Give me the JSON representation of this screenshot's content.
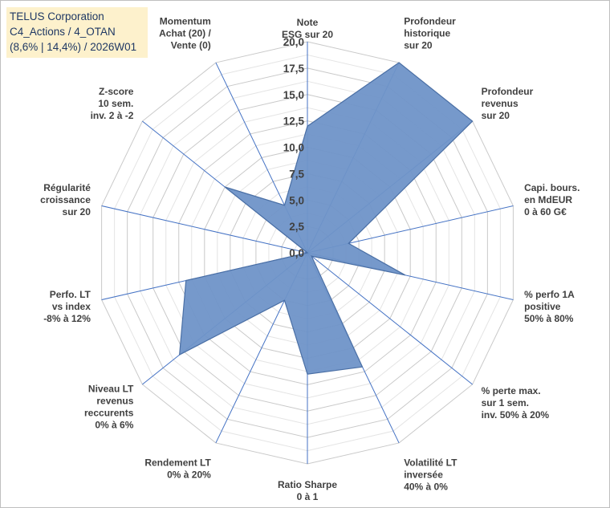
{
  "header": {
    "line1": "TELUS Corporation",
    "line2": "C4_Actions / 4_OTAN",
    "line3": "(8,6% | 14,4%) / 2026W01"
  },
  "chart_data": {
    "type": "radar",
    "rlim": [
      0,
      20
    ],
    "tick_values": [
      0,
      2.5,
      5,
      7.5,
      10,
      12.5,
      15,
      17.5,
      20
    ],
    "tick_labels": [
      "0,0",
      "2,5",
      "5,0",
      "7,5",
      "10,0",
      "12,5",
      "15,0",
      "17,5",
      "20,0"
    ],
    "axes": [
      {
        "label": [
          "Note",
          "ESG sur 20"
        ],
        "value": 12
      },
      {
        "label": [
          "Profondeur",
          "historique",
          "sur 20"
        ],
        "value": 20
      },
      {
        "label": [
          "Profondeur",
          "revenus",
          "sur 20"
        ],
        "value": 20
      },
      {
        "label": [
          "Capi. bours.",
          "en MdEUR",
          "0 à 60 G€"
        ],
        "value": 4
      },
      {
        "label": [
          "% perfo 1A",
          "positive",
          "50% à 80%"
        ],
        "value": 9.5
      },
      {
        "label": [
          "% perte max.",
          "sur 1 sem.",
          "inv. 50% à 20%"
        ],
        "value": 0.5
      },
      {
        "label": [
          "Volatilité LT",
          "inversée",
          "40% à 0%"
        ],
        "value": 12
      },
      {
        "label": [
          "Ratio Sharpe",
          "0 à 1"
        ],
        "value": 11.5
      },
      {
        "label": [
          "Rendement LT",
          "0% à 20%"
        ],
        "value": 5
      },
      {
        "label": [
          "Niveau LT",
          "revenus",
          "reccurents",
          "0% à 6%"
        ],
        "value": 15.5
      },
      {
        "label": [
          "Perfo. LT",
          "vs index",
          "-8% à 12%"
        ],
        "value": 11.8
      },
      {
        "label": [
          "Régularité",
          "croissance",
          "sur 20"
        ],
        "value": 0
      },
      {
        "label": [
          "Z-score",
          "10 sem.",
          "inv. 2 à -2"
        ],
        "value": 10
      },
      {
        "label": [
          "Momentum",
          "Achat (20) /",
          "Vente (0)"
        ],
        "value": 5
      }
    ],
    "colors": {
      "fill": "#6f93c8",
      "stroke": "#4a6fa5",
      "axis": "#4472c4",
      "grid": "#d9d9d9"
    }
  }
}
